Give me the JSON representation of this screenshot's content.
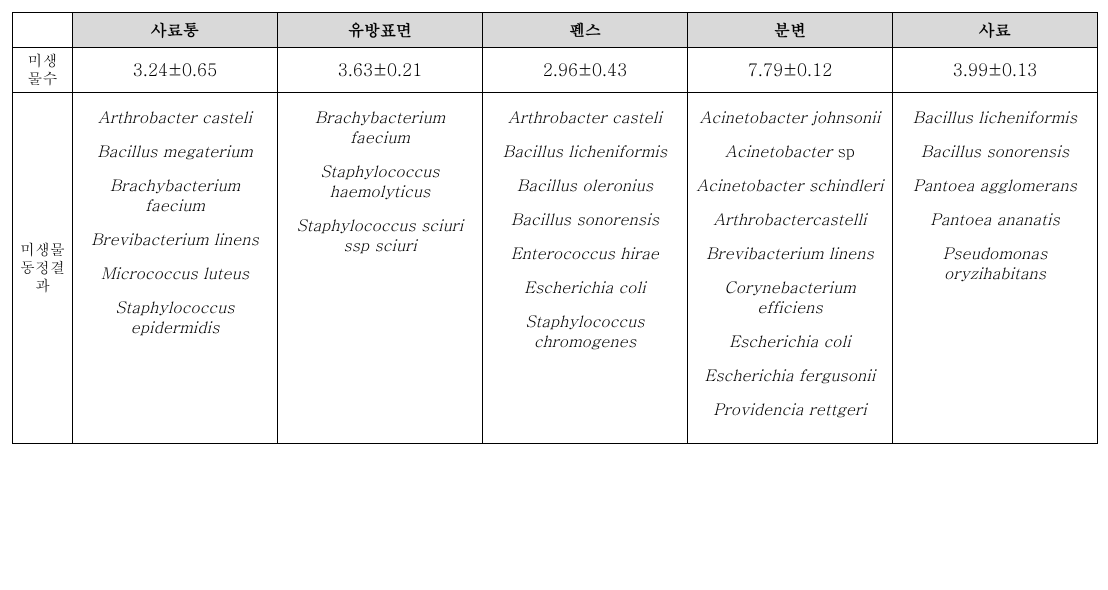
{
  "columns": [
    "사료통",
    "유방표면",
    "펜스",
    "분변",
    "사료"
  ],
  "row_labels": {
    "counts": "미생\n물수",
    "species": "미생물\n동정결\n과"
  },
  "counts": [
    "3.24±0.65",
    "3.63±0.21",
    "2.96±0.43",
    "7.79±0.12",
    "3.99±0.13"
  ],
  "species": {
    "col0": [
      "Arthrobacter casteli",
      "Bacillus megaterium",
      "Brachybacterium faecium",
      "Brevibacterium linens",
      "Micrococcus luteus",
      "Staphylococcus epidermidis"
    ],
    "col1": [
      "Brachybacterium faecium",
      "Staphylococcus haemolyticus",
      "Staphylococcus sciuri ssp sciuri"
    ],
    "col2": [
      "Arthrobacter casteli",
      "Bacillus licheniformis",
      "Bacillus oleronius",
      "Bacillus sonorensis",
      "Enterococcus hirae",
      "Escherichia coli",
      "Staphylococcus chromogenes"
    ],
    "col3": [
      "Acinetobacter johnsonii",
      {
        "italic": "Acinetobacter",
        "roman": " sp"
      },
      "Acinetobacter schindleri",
      "Arthrobactercastelli",
      "Brevibacterium linens",
      "Corynebacterium efficiens",
      "Escherichia coli",
      "Escherichia fergusonii",
      "Providencia rettgeri"
    ],
    "col4": [
      "Bacillus licheniformis",
      "Bacillus sonorensis",
      "Pantoea agglomerans",
      "Pantoea ananatis",
      "Pseudomonas oryzihabitans"
    ]
  },
  "style": {
    "header_bg": "#d9d9d9",
    "border_color": "#000000",
    "font_italic_species": true
  }
}
